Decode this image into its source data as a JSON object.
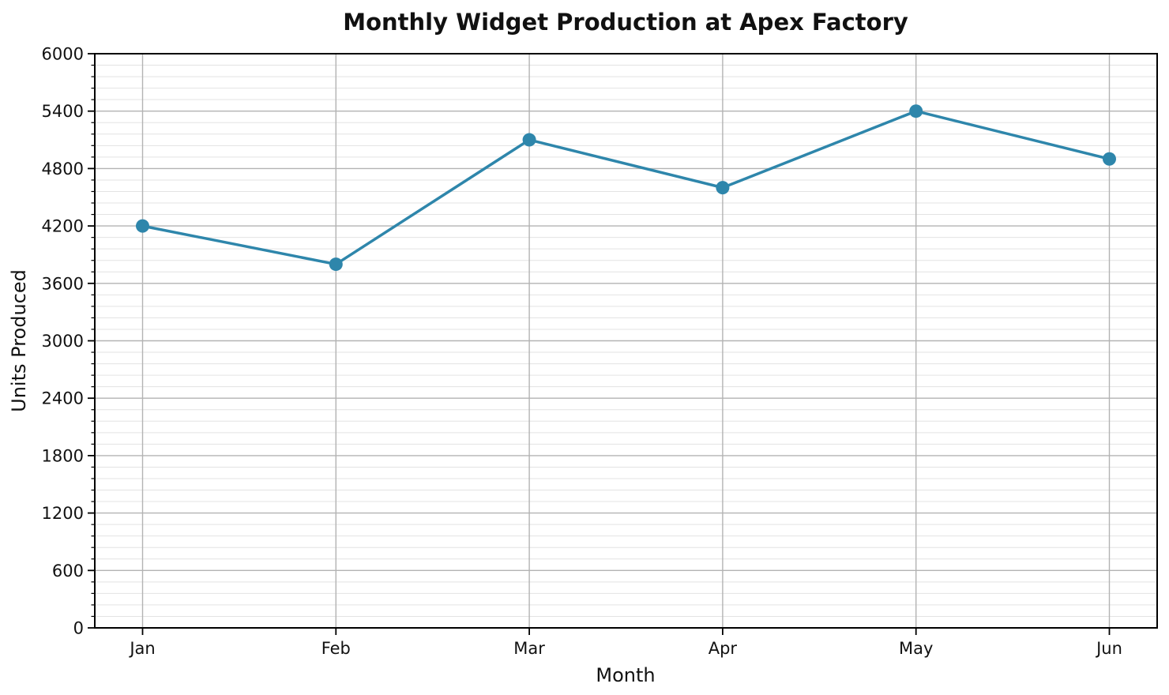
{
  "chart_data": {
    "type": "line",
    "title": "Monthly Widget Production at Apex Factory",
    "xlabel": "Month",
    "ylabel": "Units Produced",
    "categories": [
      "Jan",
      "Feb",
      "Mar",
      "Apr",
      "May",
      "Jun"
    ],
    "series": [
      {
        "name": "Units Produced",
        "values": [
          4200,
          3800,
          5100,
          4600,
          5400,
          4900
        ]
      }
    ],
    "ylim": [
      0,
      6000
    ],
    "y_major_step": 600,
    "y_minor_step": 120,
    "y_major_ticks": [
      0,
      600,
      1200,
      1800,
      2400,
      3000,
      3600,
      4200,
      4800,
      5400,
      6000
    ],
    "grid": {
      "horizontal_major": true,
      "horizontal_minor": true,
      "vertical_major": true
    },
    "legend_position": "none",
    "line_color": "#2E86AB",
    "marker": "circle"
  }
}
